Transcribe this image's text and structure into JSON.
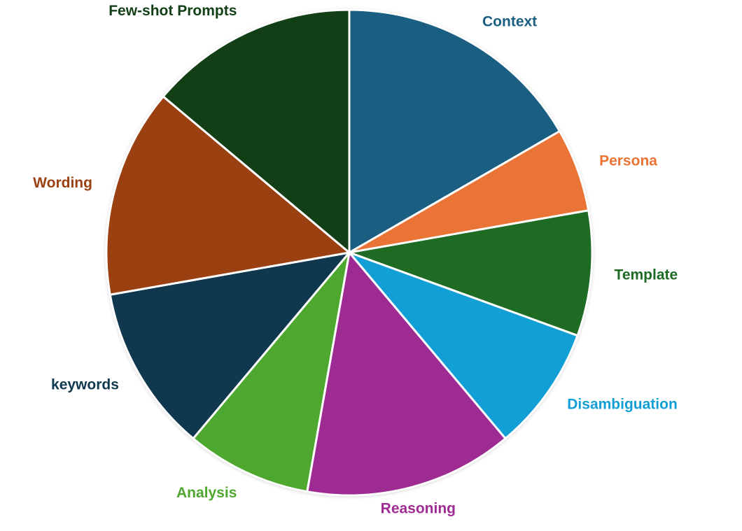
{
  "chart_data": {
    "type": "pie",
    "categories": [
      "Context",
      "Persona",
      "Template",
      "Disambiguation",
      "Reasoning",
      "Analysis",
      "keywords",
      "Wording",
      "Few-shot Prompts"
    ],
    "values": [
      6,
      2,
      3,
      3,
      5,
      3,
      4,
      5,
      5
    ],
    "colors": [
      "#1a5f82",
      "#e97435",
      "#1e6b24",
      "#129fd6",
      "#9e2b92",
      "#4ea82f",
      "#0f384f",
      "#9a4011",
      "#133f17"
    ]
  }
}
